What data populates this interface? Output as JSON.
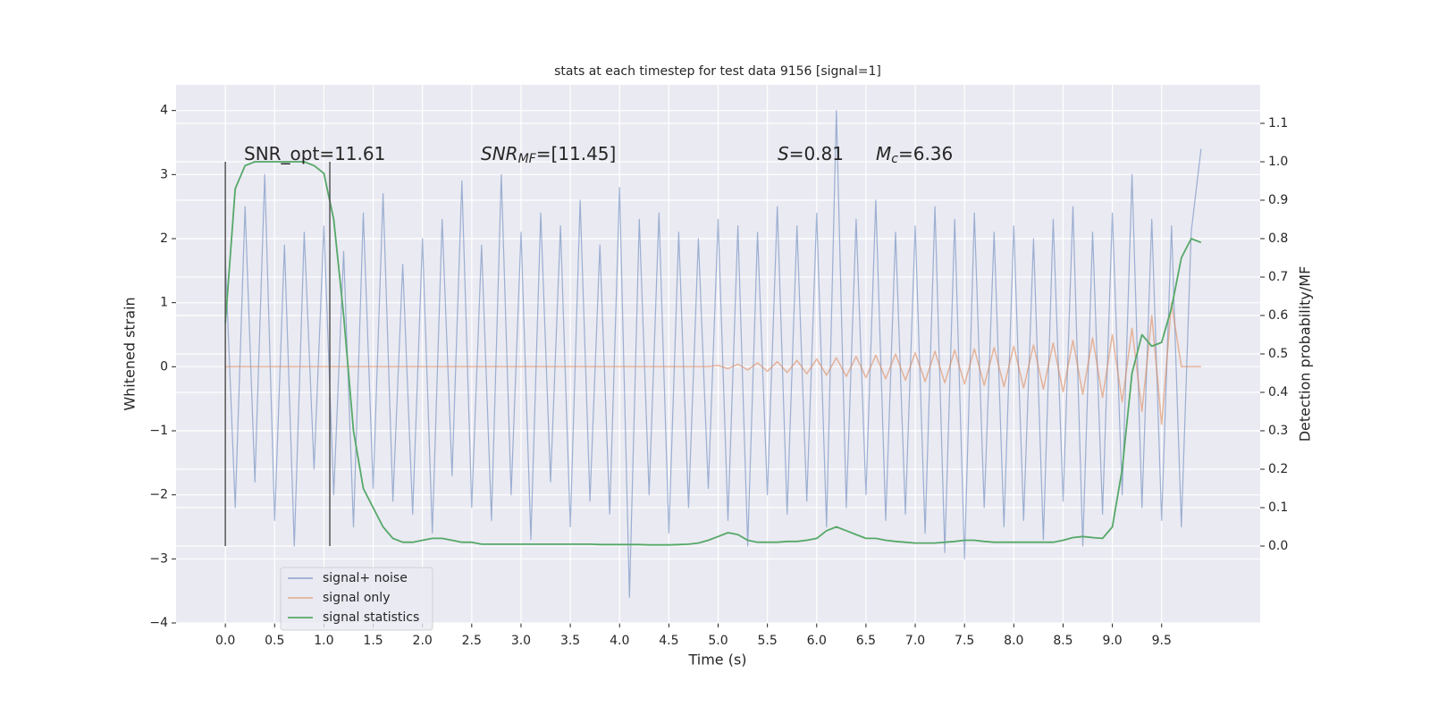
{
  "chart_data": {
    "type": "line",
    "title": "stats at each timestep for test data 9156 [signal=1]",
    "xlabel": "Time (s)",
    "ylabel": "Whitened strain",
    "y2label": "Detection probability/MF",
    "x": [
      0.0,
      0.1,
      0.2,
      0.3,
      0.4,
      0.5,
      0.6,
      0.7,
      0.8,
      0.9,
      1.0,
      1.1,
      1.2,
      1.3,
      1.4,
      1.5,
      1.6,
      1.7,
      1.8,
      1.9,
      2.0,
      2.1,
      2.2,
      2.3,
      2.4,
      2.5,
      2.6,
      2.7,
      2.8,
      2.9,
      3.0,
      3.1,
      3.2,
      3.3,
      3.4,
      3.5,
      3.6,
      3.7,
      3.8,
      3.9,
      4.0,
      4.1,
      4.2,
      4.3,
      4.4,
      4.5,
      4.6,
      4.7,
      4.8,
      4.9,
      5.0,
      5.1,
      5.2,
      5.3,
      5.4,
      5.5,
      5.6,
      5.7,
      5.8,
      5.9,
      6.0,
      6.1,
      6.2,
      6.3,
      6.4,
      6.5,
      6.6,
      6.7,
      6.8,
      6.9,
      7.0,
      7.1,
      7.2,
      7.3,
      7.4,
      7.5,
      7.6,
      7.7,
      7.8,
      7.9,
      8.0,
      8.1,
      8.2,
      8.3,
      8.4,
      8.5,
      8.6,
      8.7,
      8.8,
      8.9,
      9.0,
      9.1,
      9.2,
      9.3,
      9.4,
      9.5,
      9.6,
      9.7,
      9.8,
      9.9
    ],
    "series": [
      {
        "name": "signal+ noise",
        "color": "#4c72b0",
        "values": [
          1.7,
          -2.2,
          2.5,
          -1.8,
          3.0,
          -2.4,
          1.9,
          -2.8,
          2.1,
          -1.6,
          2.2,
          -2.0,
          1.8,
          -2.5,
          2.4,
          -1.9,
          2.7,
          -2.1,
          1.6,
          -2.3,
          2.0,
          -2.6,
          2.3,
          -1.7,
          2.9,
          -2.2,
          1.9,
          -2.4,
          3.0,
          -2.0,
          2.1,
          -2.7,
          2.4,
          -1.8,
          2.2,
          -2.5,
          2.6,
          -2.1,
          1.9,
          -2.3,
          2.8,
          -3.6,
          2.3,
          -2.0,
          2.4,
          -2.6,
          2.1,
          -2.2,
          2.0,
          -1.9,
          2.3,
          -2.4,
          2.2,
          -2.8,
          2.1,
          -2.0,
          2.5,
          -2.3,
          2.2,
          -2.1,
          2.4,
          -2.5,
          4.0,
          -2.2,
          2.3,
          -2.0,
          2.6,
          -2.4,
          2.1,
          -2.3,
          2.2,
          -2.6,
          2.5,
          -2.9,
          2.3,
          -3.0,
          2.4,
          -2.2,
          2.1,
          -2.5,
          2.2,
          -2.4,
          2.0,
          -2.7,
          2.3,
          -2.1,
          2.5,
          -2.8,
          2.1,
          -2.3,
          2.4,
          -2.0,
          3.0,
          -2.2,
          2.3,
          -2.4,
          2.2,
          -2.5,
          2.1,
          3.4
        ]
      },
      {
        "name": "signal only",
        "color": "#dd8452",
        "values": [
          0,
          0,
          0,
          0,
          0,
          0,
          0,
          0,
          0,
          0,
          0,
          0,
          0,
          0,
          0,
          0,
          0,
          0,
          0,
          0,
          0,
          0,
          0,
          0,
          0,
          0,
          0,
          0,
          0,
          0,
          0,
          0,
          0,
          0,
          0,
          0,
          0,
          0,
          0,
          0,
          0,
          0,
          0,
          0,
          0,
          0,
          0,
          0,
          0,
          0,
          0.02,
          -0.03,
          0.04,
          -0.05,
          0.06,
          -0.07,
          0.08,
          -0.09,
          0.1,
          -0.11,
          0.12,
          -0.13,
          0.14,
          -0.15,
          0.16,
          -0.17,
          0.18,
          -0.19,
          0.2,
          -0.21,
          0.22,
          -0.23,
          0.24,
          -0.25,
          0.26,
          -0.27,
          0.28,
          -0.29,
          0.3,
          -0.31,
          0.32,
          -0.33,
          0.34,
          -0.35,
          0.37,
          -0.39,
          0.41,
          -0.43,
          0.45,
          -0.48,
          0.5,
          -0.55,
          0.6,
          -0.7,
          0.8,
          -0.9,
          1.0,
          0,
          0,
          0
        ]
      },
      {
        "name": "signal statistics",
        "color": "#55a868",
        "axis": "y2",
        "values": [
          0.58,
          0.93,
          0.99,
          1.0,
          1.0,
          1.0,
          1.0,
          1.0,
          1.0,
          0.99,
          0.97,
          0.85,
          0.6,
          0.3,
          0.15,
          0.1,
          0.05,
          0.02,
          0.01,
          0.01,
          0.015,
          0.02,
          0.02,
          0.015,
          0.01,
          0.01,
          0.005,
          0.005,
          0.005,
          0.005,
          0.005,
          0.005,
          0.005,
          0.005,
          0.005,
          0.005,
          0.005,
          0.005,
          0.004,
          0.004,
          0.004,
          0.004,
          0.004,
          0.003,
          0.003,
          0.003,
          0.004,
          0.005,
          0.008,
          0.015,
          0.025,
          0.035,
          0.03,
          0.015,
          0.01,
          0.01,
          0.01,
          0.012,
          0.012,
          0.015,
          0.02,
          0.04,
          0.05,
          0.04,
          0.03,
          0.02,
          0.02,
          0.015,
          0.012,
          0.01,
          0.008,
          0.008,
          0.008,
          0.01,
          0.012,
          0.015,
          0.015,
          0.012,
          0.01,
          0.01,
          0.01,
          0.01,
          0.01,
          0.01,
          0.01,
          0.015,
          0.022,
          0.025,
          0.022,
          0.02,
          0.05,
          0.2,
          0.45,
          0.55,
          0.52,
          0.53,
          0.62,
          0.75,
          0.8,
          0.79
        ]
      }
    ],
    "vlines": {
      "x": [
        0,
        1.06
      ],
      "ymin": -2.8,
      "ymax": 3.2,
      "color": "#555555"
    },
    "annotations": [
      {
        "text": "SNR_opt=11.61"
      },
      {
        "math": "SNR",
        "sub": "MF",
        "text": "=[11.45]"
      },
      {
        "math": "S",
        "text": "=0.81"
      },
      {
        "math": "M",
        "sub": "c",
        "text": "=6.36"
      }
    ],
    "xlim": [
      -0.5,
      10.5
    ],
    "xticks": [
      {
        "value": 0,
        "label": "0.0"
      },
      {
        "value": 0.5,
        "label": "0.5"
      },
      {
        "value": 1,
        "label": "1.0"
      },
      {
        "value": 1.5,
        "label": "1.5"
      },
      {
        "value": 2,
        "label": "2.0"
      },
      {
        "value": 2.5,
        "label": "2.5"
      },
      {
        "value": 3,
        "label": "3.0"
      },
      {
        "value": 3.5,
        "label": "3.5"
      },
      {
        "value": 4,
        "label": "4.0"
      },
      {
        "value": 4.5,
        "label": "4.5"
      },
      {
        "value": 5,
        "label": "5.0"
      },
      {
        "value": 5.5,
        "label": "5.5"
      },
      {
        "value": 6,
        "label": "6.0"
      },
      {
        "value": 6.5,
        "label": "6.5"
      },
      {
        "value": 7,
        "label": "7.0"
      },
      {
        "value": 7.5,
        "label": "7.5"
      },
      {
        "value": 8,
        "label": "8.0"
      },
      {
        "value": 8.5,
        "label": "8.5"
      },
      {
        "value": 9,
        "label": "9.0"
      },
      {
        "value": 9.5,
        "label": "9.5"
      }
    ],
    "ylim": [
      -4,
      4.4
    ],
    "yticks": [
      {
        "value": -4,
        "label": "−4"
      },
      {
        "value": -3,
        "label": "−3"
      },
      {
        "value": -2,
        "label": "−2"
      },
      {
        "value": -1,
        "label": "−1"
      },
      0,
      1,
      2,
      3,
      4
    ],
    "y2lim": [
      -0.2,
      1.2
    ],
    "y2ticks": [
      {
        "value": 0,
        "label": "0.0"
      },
      {
        "value": 0.1,
        "label": "0.1"
      },
      {
        "value": 0.2,
        "label": "0.2"
      },
      {
        "value": 0.3,
        "label": "0.3"
      },
      {
        "value": 0.4,
        "label": "0.4"
      },
      {
        "value": 0.5,
        "label": "0.5"
      },
      {
        "value": 0.6,
        "label": "0.6"
      },
      {
        "value": 0.7,
        "label": "0.7"
      },
      {
        "value": 0.8,
        "label": "0.8"
      },
      {
        "value": 0.9,
        "label": "0.9"
      },
      {
        "value": 1,
        "label": "1.0"
      },
      {
        "value": 1.1,
        "label": "1.1"
      }
    ],
    "grid": true,
    "legend": "lower left"
  }
}
